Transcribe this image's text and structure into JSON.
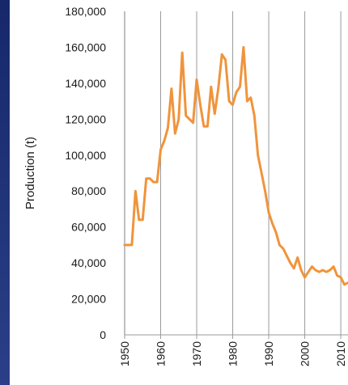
{
  "chart_data": {
    "type": "line",
    "title": "",
    "xlabel": "",
    "ylabel": "Production (t)",
    "xlim": [
      1950,
      2012
    ],
    "ylim": [
      0,
      180000
    ],
    "yticks": [
      "0",
      "20,000",
      "40,000",
      "60,000",
      "80,000",
      "100,000",
      "120,000",
      "140,000",
      "160,000",
      "180,000"
    ],
    "xticks": [
      "1950",
      "1960",
      "1970",
      "1980",
      "1990",
      "2000",
      "2010"
    ],
    "grid": "vertical",
    "colors": {
      "line": "#F0943C",
      "grid": "#9a9a9a",
      "plot_bg": "#FFFFFF"
    },
    "series": [
      {
        "x": [
          1950,
          1951,
          1952,
          1953,
          1954,
          1955,
          1956,
          1957,
          1958,
          1959,
          1960,
          1961,
          1962,
          1963,
          1964,
          1965,
          1966,
          1967,
          1968,
          1969,
          1970,
          1971,
          1972,
          1973,
          1974,
          1975,
          1976,
          1977,
          1978,
          1979,
          1980,
          1981,
          1982,
          1983,
          1984,
          1985,
          1986,
          1987,
          1988,
          1989,
          1990,
          1991,
          1992,
          1993,
          1994,
          1995,
          1996,
          1997,
          1998,
          1999,
          2000,
          2001,
          2002,
          2003,
          2004,
          2005,
          2006,
          2007,
          2008,
          2009,
          2010,
          2011,
          2012
        ],
        "values": [
          50000,
          50000,
          50000,
          80000,
          64000,
          64000,
          87000,
          87000,
          85000,
          85000,
          103000,
          108000,
          115000,
          137000,
          112000,
          120000,
          157000,
          122000,
          120000,
          118000,
          142000,
          128000,
          116000,
          116000,
          138000,
          123000,
          137000,
          156000,
          153000,
          130000,
          128000,
          135000,
          138000,
          160000,
          130000,
          132000,
          122000,
          100000,
          90000,
          80000,
          68000,
          62000,
          57000,
          50000,
          48000,
          44000,
          40000,
          37000,
          43000,
          36000,
          32000,
          35000,
          38000,
          36000,
          35000,
          36000,
          35000,
          36000,
          38000,
          33000,
          32000,
          28000,
          29000
        ]
      }
    ]
  }
}
